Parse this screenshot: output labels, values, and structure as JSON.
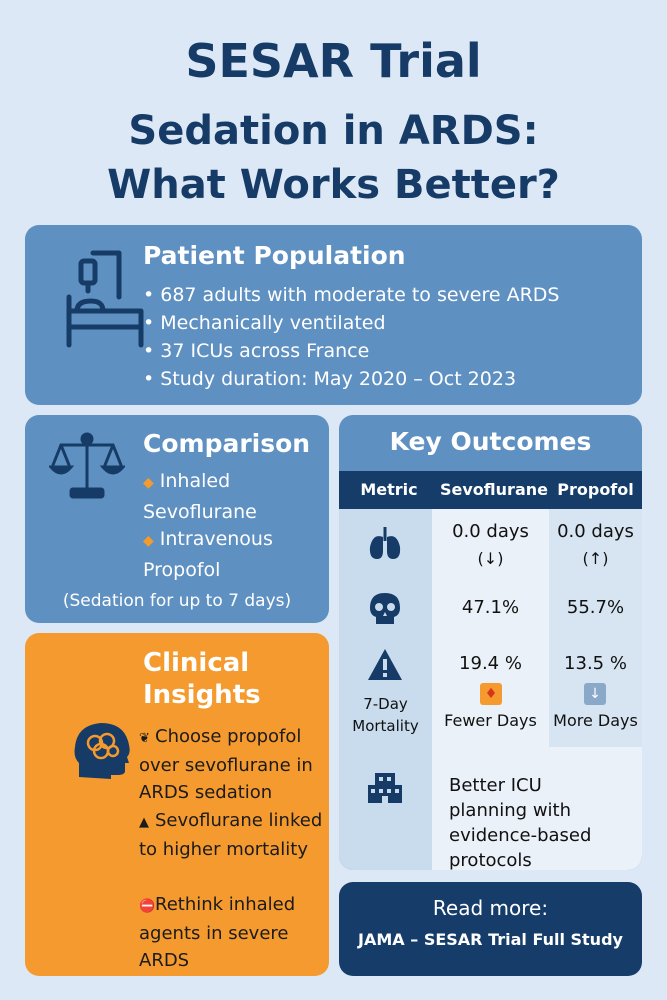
{
  "title": {
    "line1": "SESAR Trial",
    "line2": "Sedation in ARDS:",
    "line3": "What Works Better?"
  },
  "population": {
    "heading": "Patient Population",
    "icon": "hospital-bed-icon",
    "items": [
      "687 adults with moderate to severe ARDS",
      "Mechanically ventilated",
      "37 ICUs across France",
      "Study duration: May 2020 – Oct 2023"
    ]
  },
  "comparison": {
    "heading": "Comparison",
    "icon": "balance-scale-icon",
    "option1": "Inhaled Sevoflurane",
    "option2": "Intravenous Propofol",
    "note": "(Sedation for up to 7 days)"
  },
  "insights": {
    "heading_line1": "Clinical",
    "heading_line2": "Insights",
    "icon": "brain-head-icon",
    "items": [
      "Choose propofol over sevoflurane in ARDS sedation",
      "Sevoflurane linked to higher mortality",
      "Rethink inhaled agents in severe ARDS"
    ]
  },
  "outcomes": {
    "heading": "Key Outcomes",
    "columns": [
      "Metric",
      "Sevoflurane",
      "Propofol"
    ],
    "row1": {
      "icon": "lungs-icon",
      "sevo": "0.0 days",
      "sevo_arrow": "(↓)",
      "prop": "0.0 days",
      "prop_arrow": "(↑)"
    },
    "row2": {
      "icon": "skull-icon",
      "sevo": "47.1%",
      "prop": "55.7%"
    },
    "row3": {
      "icon": "warning-icon",
      "metric": "7-Day Mortality",
      "sevo": "19.4 %",
      "sevo_label": "Fewer Days",
      "prop": "13.5 %",
      "prop_label": "More Days"
    },
    "row4": {
      "icon": "hospital-building-icon",
      "text": "Better ICU planning with evidence-based protocols"
    }
  },
  "read_more": {
    "label": "Read more:",
    "link": "JAMA – SESAR Trial Full Study"
  },
  "colors": {
    "background": "#dce8f5",
    "title": "#153b66",
    "card_blue": "#5f90c2",
    "card_orange": "#f59a2e",
    "navy": "#163d6a"
  }
}
